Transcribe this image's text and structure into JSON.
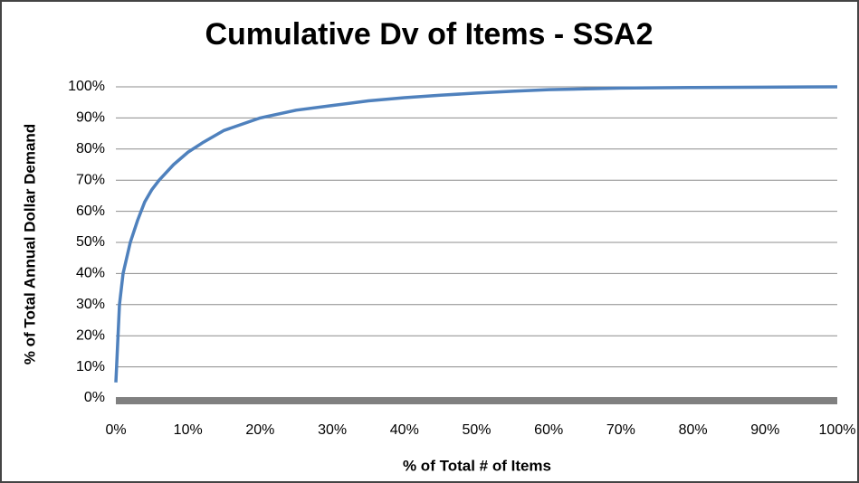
{
  "chart_data": {
    "type": "line",
    "title": "Cumulative Dv of Items - SSA2",
    "x_label": "% of Total # of Items",
    "y_label": "% of Total Annual Dollar Demand",
    "x": [
      0,
      0.3,
      0.5,
      1,
      2,
      3,
      4,
      5,
      6,
      8,
      10,
      12,
      15,
      20,
      25,
      30,
      35,
      40,
      45,
      50,
      55,
      60,
      70,
      80,
      90,
      100
    ],
    "series": [
      {
        "name": "Cumulative Dv",
        "color": "#4f81bd",
        "values": [
          5,
          20,
          30,
          40,
          50,
          57,
          63,
          67,
          70,
          75,
          79,
          82,
          86,
          90,
          92.5,
          94,
          95.5,
          96.5,
          97.3,
          98,
          98.6,
          99.1,
          99.6,
          99.8,
          99.9,
          100
        ]
      }
    ],
    "xlim": [
      0,
      100
    ],
    "xticks": [
      {
        "value": 0,
        "label": "0%"
      },
      {
        "value": 10,
        "label": "10%"
      },
      {
        "value": 20,
        "label": "20%"
      },
      {
        "value": 30,
        "label": "30%"
      },
      {
        "value": 40,
        "label": "40%"
      },
      {
        "value": 50,
        "label": "50%"
      },
      {
        "value": 60,
        "label": "60%"
      },
      {
        "value": 70,
        "label": "70%"
      },
      {
        "value": 80,
        "label": "80%"
      },
      {
        "value": 90,
        "label": "90%"
      },
      {
        "value": 100,
        "label": "100%"
      }
    ],
    "ylim": [
      0,
      100
    ],
    "yticks": [
      {
        "value": 0,
        "label": "0%"
      },
      {
        "value": 10,
        "label": "10%"
      },
      {
        "value": 20,
        "label": "20%"
      },
      {
        "value": 30,
        "label": "30%"
      },
      {
        "value": 40,
        "label": "40%"
      },
      {
        "value": 50,
        "label": "50%"
      },
      {
        "value": 60,
        "label": "60%"
      },
      {
        "value": 70,
        "label": "70%"
      },
      {
        "value": 80,
        "label": "80%"
      },
      {
        "value": 90,
        "label": "90%"
      },
      {
        "value": 100,
        "label": "100%"
      }
    ],
    "grid": true
  }
}
